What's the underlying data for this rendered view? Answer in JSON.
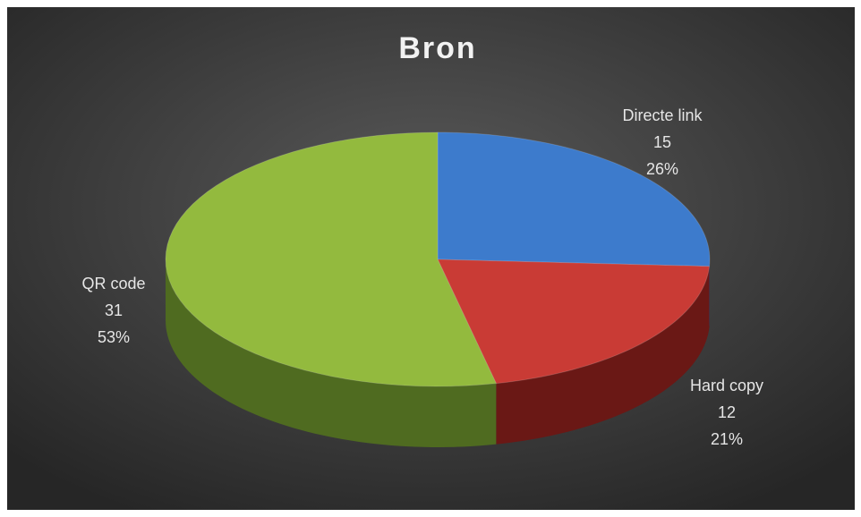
{
  "chart_data": {
    "type": "pie",
    "title": "Bron",
    "categories": [
      "Directe link",
      "Hard copy",
      "QR code"
    ],
    "values": [
      15,
      12,
      31
    ],
    "percent_labels": [
      "26%",
      "21%",
      "53%"
    ],
    "colors": [
      "#3d7bcc",
      "#c93b35",
      "#93ba3e"
    ],
    "side_colors": [
      "#23487a",
      "#6a1815",
      "#4f6b20"
    ]
  }
}
